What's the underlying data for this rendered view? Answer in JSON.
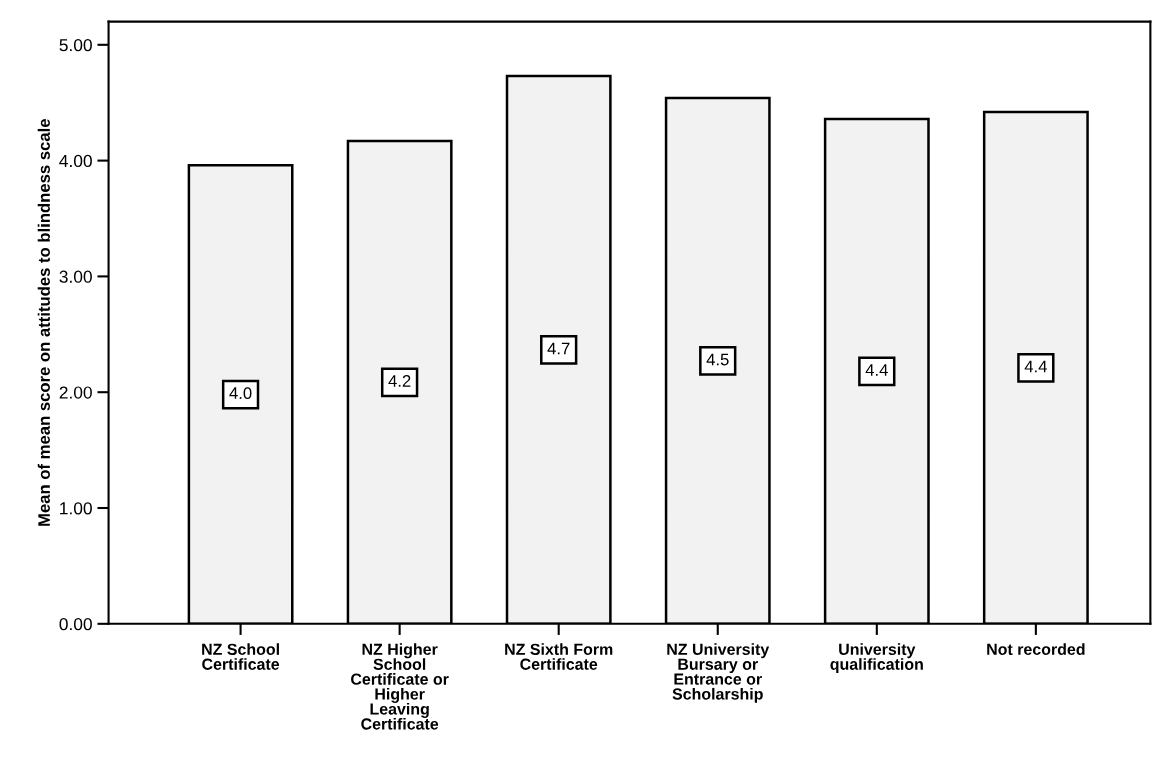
{
  "chart_data": {
    "type": "bar",
    "ylabel": "Mean of mean score on attitudes to blindness scale",
    "categories": [
      "NZ School\nCertificate",
      "NZ Higher\nSchool\nCertificate or\nHigher\nLeaving\nCertificate",
      "NZ Sixth Form\nCertificate",
      "NZ University\nBursary or\nEntrance or\nScholarship",
      "University\nqualification",
      "Not recorded"
    ],
    "values": [
      3.96,
      4.17,
      4.73,
      4.54,
      4.36,
      4.42
    ],
    "value_labels": [
      "4.0",
      "4.2",
      "4.7",
      "4.5",
      "4.4",
      "4.4"
    ],
    "color": "#f2f2f2",
    "ylim": [
      0,
      5.2
    ],
    "yticks": [
      {
        "value": 0,
        "label": "0.00"
      },
      {
        "value": 1,
        "label": "1.00"
      },
      {
        "value": 2,
        "label": "2.00"
      },
      {
        "value": 3,
        "label": "3.00"
      },
      {
        "value": 4,
        "label": "4.00"
      },
      {
        "value": 5,
        "label": "5.00"
      }
    ],
    "grid": false,
    "legend": false
  }
}
